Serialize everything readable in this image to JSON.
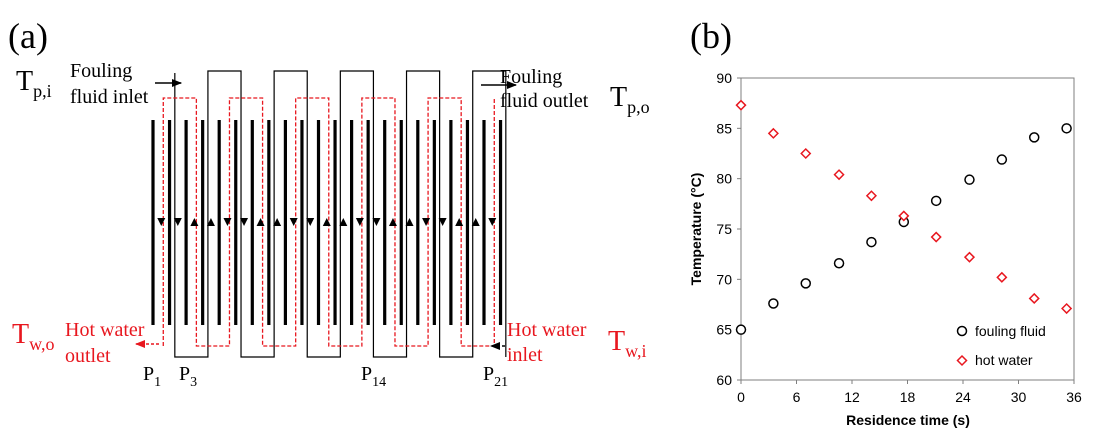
{
  "panel_a": {
    "label": "(a)",
    "tp_in": {
      "base": "T",
      "sub": "p,i"
    },
    "tp_out": {
      "base": "T",
      "sub": "p,o"
    },
    "tw_out": {
      "base": "T",
      "sub": "w,o"
    },
    "tw_in": {
      "base": "T",
      "sub": "w,i"
    },
    "fouling_inlet": [
      "Fouling",
      "fluid inlet"
    ],
    "fouling_outlet": [
      "Fouling",
      "fluid outlet"
    ],
    "hot_water_outlet": [
      "Hot water",
      "outlet"
    ],
    "hot_water_inlet": [
      "Hot water",
      "inlet"
    ],
    "plate_labels": [
      {
        "base": "P",
        "sub": "1"
      },
      {
        "base": "P",
        "sub": "3"
      },
      {
        "base": "P",
        "sub": "14"
      },
      {
        "base": "P",
        "sub": "21"
      }
    ],
    "colors": {
      "fouling": "#000000",
      "water": "#e8171f"
    }
  },
  "panel_b": {
    "label": "(b)"
  },
  "chart_data": {
    "type": "scatter",
    "title": "",
    "xlabel": "Residence time (s)",
    "ylabel": "Temperature (°C)",
    "xlim": [
      0,
      36
    ],
    "ylim": [
      60,
      90
    ],
    "xticks": [
      0,
      6,
      12,
      18,
      24,
      30,
      36
    ],
    "yticks": [
      60,
      65,
      70,
      75,
      80,
      85,
      90
    ],
    "grid": false,
    "legend_position": "bottom-right",
    "series": [
      {
        "name": "fouling fluid",
        "marker": "circle",
        "color": "#000000",
        "x": [
          0,
          3.5,
          7.0,
          10.6,
          14.1,
          17.6,
          21.1,
          24.7,
          28.2,
          31.7,
          35.2
        ],
        "y": [
          65.0,
          67.6,
          69.6,
          71.6,
          73.7,
          75.7,
          77.8,
          79.9,
          81.9,
          84.1,
          85.0
        ]
      },
      {
        "name": "hot water",
        "marker": "diamond",
        "color": "#e8171f",
        "x": [
          0,
          3.5,
          7.0,
          10.6,
          14.1,
          17.6,
          21.1,
          24.7,
          28.2,
          31.7,
          35.2
        ],
        "y": [
          87.3,
          84.5,
          82.5,
          80.4,
          78.3,
          76.3,
          74.2,
          72.2,
          70.2,
          68.1,
          67.1
        ]
      }
    ]
  }
}
